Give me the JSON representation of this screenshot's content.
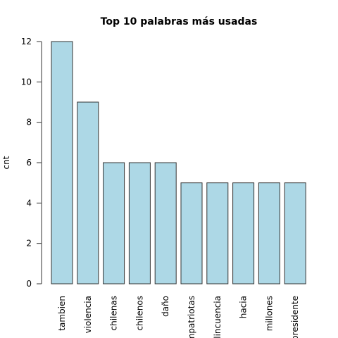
{
  "chart_data": {
    "type": "bar",
    "title": "Top 10 palabras más usadas",
    "xlabel": "",
    "ylabel": "cnt",
    "categories": [
      "tambien",
      "violencia",
      "chilenas",
      "chilenos",
      "daño",
      "compatriotas",
      "delincuencia",
      "hacia",
      "millones",
      "presidente"
    ],
    "values": [
      12,
      9,
      6,
      6,
      6,
      5,
      5,
      5,
      5,
      5
    ],
    "ylim": [
      0,
      12
    ],
    "yticks": [
      0,
      2,
      4,
      6,
      8,
      10,
      12
    ],
    "bar_color": "#add8e6",
    "grid": false,
    "legend": "none"
  }
}
